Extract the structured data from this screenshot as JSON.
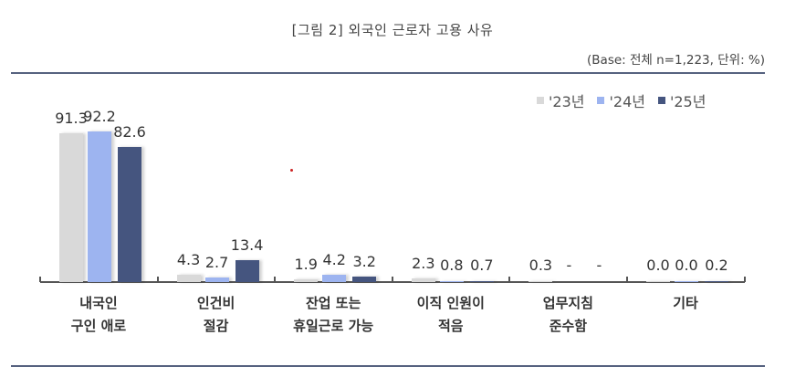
{
  "header": {
    "title": "[그림 2] 외국인 근로자 고용 사유",
    "base_note": "(Base: 전체 n=1,223, 단위: %)"
  },
  "legend": [
    {
      "label": "'23년",
      "color": "#d9d9d9"
    },
    {
      "label": "'24년",
      "color": "#9db4f0"
    },
    {
      "label": "'25년",
      "color": "#45557f"
    }
  ],
  "categories": [
    {
      "line1": "내국인",
      "line2": "구인 애로",
      "labels": [
        "91.3",
        "92.2",
        "82.6"
      ]
    },
    {
      "line1": "인건비",
      "line2": "절감",
      "labels": [
        "4.3",
        "2.7",
        "13.4"
      ]
    },
    {
      "line1": "잔업 또는",
      "line2": "휴일근로 가능",
      "labels": [
        "1.9",
        "4.2",
        "3.2"
      ]
    },
    {
      "line1": "이직 인원이",
      "line2": "적음",
      "labels": [
        "2.3",
        "0.8",
        "0.7"
      ]
    },
    {
      "line1": "업무지침",
      "line2": "준수함",
      "labels": [
        "0.3",
        "-",
        "-"
      ]
    },
    {
      "line1": "기타",
      "line2": "",
      "labels": [
        "0.0",
        "0.0",
        "0.2"
      ]
    }
  ],
  "chart_data": {
    "type": "bar",
    "title": "[그림 2] 외국인 근로자 고용 사유",
    "subtitle": "(Base: 전체 n=1,223, 단위: %)",
    "xlabel": "",
    "ylabel": "",
    "ylim": [
      0,
      100
    ],
    "grid": false,
    "legend_position": "top-right",
    "categories": [
      "내국인 구인 애로",
      "인건비 절감",
      "잔업 또는 휴일근로 가능",
      "이직 인원이 적음",
      "업무지침 준수함",
      "기타"
    ],
    "series": [
      {
        "name": "'23년",
        "color": "#d9d9d9",
        "values": [
          91.3,
          4.3,
          1.9,
          2.3,
          0.3,
          0.0
        ]
      },
      {
        "name": "'24년",
        "color": "#9db4f0",
        "values": [
          92.2,
          2.7,
          4.2,
          0.8,
          null,
          0.0
        ]
      },
      {
        "name": "'25년",
        "color": "#45557f",
        "values": [
          82.6,
          13.4,
          3.2,
          0.7,
          null,
          0.2
        ]
      }
    ]
  }
}
